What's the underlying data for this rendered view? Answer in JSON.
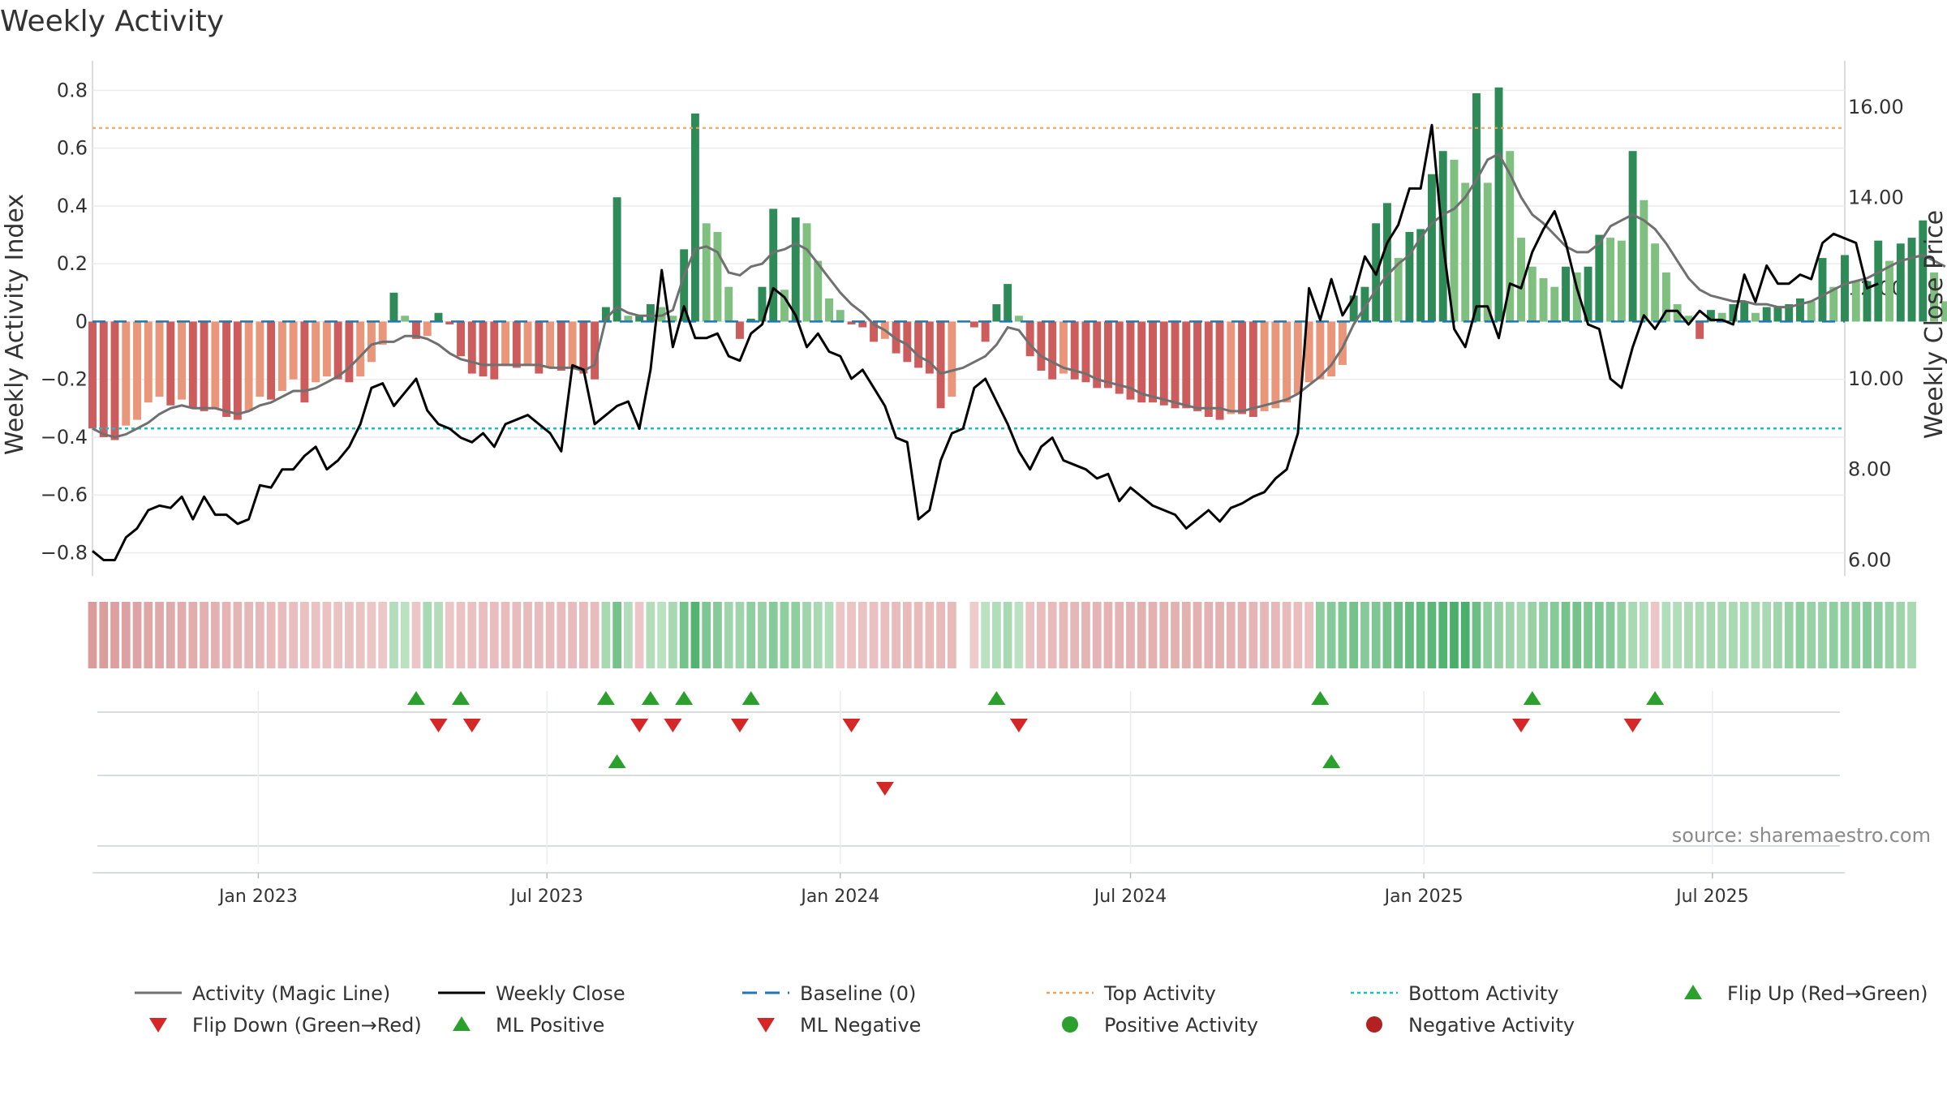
{
  "chart_data": {
    "type": "bar+line",
    "title": "Weekly Activity",
    "ylabel_left": "Weekly Activity Index",
    "ylabel_right": "Weekly Close Price",
    "source": "source: sharemaestro.com",
    "x_start": "2022-09-19",
    "x_end": "2025-09-22",
    "week_days": 7,
    "ylim_left": [
      -0.88,
      0.86
    ],
    "ylim_right": [
      5.65,
      16.75
    ],
    "left_ticks": [
      "0.8",
      "0.6",
      "0.4",
      "0.2",
      "0",
      "−0.2",
      "−0.4",
      "−0.6",
      "−0.8"
    ],
    "left_tick_values": [
      0.8,
      0.6,
      0.4,
      0.2,
      0,
      -0.2,
      -0.4,
      -0.6,
      -0.8
    ],
    "right_ticks": [
      "16.00",
      "14.00",
      "12.00",
      "10.00",
      "8.00",
      "6.00"
    ],
    "right_tick_values": [
      16,
      14,
      12,
      10,
      8,
      6
    ],
    "x_ticks": [
      {
        "label": "Jan 2023",
        "date": "2023-01-01"
      },
      {
        "label": "Jul 2023",
        "date": "2023-07-01"
      },
      {
        "label": "Jan 2024",
        "date": "2024-01-01"
      },
      {
        "label": "Jul 2024",
        "date": "2024-07-01"
      },
      {
        "label": "Jan 2025",
        "date": "2025-01-01"
      },
      {
        "label": "Jul 2025",
        "date": "2025-07-01"
      }
    ],
    "top_activity": 0.67,
    "bottom_activity": -0.37,
    "baseline": 0,
    "activity": [
      -0.37,
      -0.4,
      -0.41,
      -0.36,
      -0.34,
      -0.28,
      -0.26,
      -0.29,
      -0.27,
      -0.3,
      -0.31,
      -0.3,
      -0.33,
      -0.34,
      -0.31,
      -0.26,
      -0.27,
      -0.24,
      -0.2,
      -0.28,
      -0.21,
      -0.19,
      -0.2,
      -0.21,
      -0.19,
      -0.14,
      -0.08,
      0.1,
      0.02,
      -0.06,
      -0.05,
      0.03,
      -0.01,
      -0.12,
      -0.18,
      -0.19,
      -0.2,
      -0.15,
      -0.16,
      -0.15,
      -0.18,
      -0.16,
      -0.17,
      -0.16,
      -0.18,
      -0.2,
      0.05,
      0.43,
      0.02,
      0.02,
      0.06,
      0.05,
      0.02,
      0.25,
      0.72,
      0.34,
      0.31,
      0.12,
      -0.06,
      0.01,
      0.12,
      0.39,
      0.11,
      0.36,
      0.34,
      0.21,
      0.08,
      0.04,
      -0.01,
      -0.02,
      -0.07,
      -0.06,
      -0.11,
      -0.14,
      -0.16,
      -0.18,
      -0.3,
      -0.26,
      0.0,
      -0.02,
      -0.07,
      0.06,
      0.13,
      0.02,
      -0.12,
      -0.17,
      -0.2,
      -0.18,
      -0.2,
      -0.21,
      -0.23,
      -0.23,
      -0.25,
      -0.27,
      -0.28,
      -0.28,
      -0.29,
      -0.3,
      -0.3,
      -0.31,
      -0.33,
      -0.34,
      -0.32,
      -0.32,
      -0.33,
      -0.31,
      -0.3,
      -0.28,
      -0.25,
      -0.21,
      -0.2,
      -0.19,
      -0.15,
      0.09,
      0.12,
      0.34,
      0.41,
      0.22,
      0.31,
      0.32,
      0.51,
      0.59,
      0.56,
      0.48,
      0.79,
      0.48,
      0.81,
      0.59,
      0.29,
      0.19,
      0.15,
      0.12,
      0.19,
      0.17,
      0.19,
      0.3,
      0.29,
      0.28,
      0.59,
      0.42,
      0.27,
      0.17,
      0.06,
      0.02,
      -0.06,
      0.04,
      0.03,
      0.06,
      0.07,
      0.03,
      0.05,
      0.05,
      0.06,
      0.08,
      0.07,
      0.22,
      0.12,
      0.23,
      0.14,
      0.14,
      0.28,
      0.21,
      0.27,
      0.29,
      0.35,
      0.17,
      0.07,
      0.07
    ],
    "magic_line": [
      -0.37,
      -0.39,
      -0.4,
      -0.39,
      -0.37,
      -0.35,
      -0.32,
      -0.3,
      -0.29,
      -0.3,
      -0.3,
      -0.3,
      -0.31,
      -0.32,
      -0.31,
      -0.29,
      -0.28,
      -0.26,
      -0.24,
      -0.24,
      -0.23,
      -0.21,
      -0.19,
      -0.16,
      -0.12,
      -0.08,
      -0.07,
      -0.07,
      -0.05,
      -0.05,
      -0.06,
      -0.08,
      -0.11,
      -0.13,
      -0.14,
      -0.15,
      -0.15,
      -0.15,
      -0.15,
      -0.15,
      -0.15,
      -0.16,
      -0.16,
      -0.16,
      -0.17,
      -0.15,
      0.01,
      0.05,
      0.03,
      0.02,
      0.02,
      0.02,
      0.04,
      0.16,
      0.25,
      0.26,
      0.24,
      0.17,
      0.16,
      0.19,
      0.2,
      0.24,
      0.25,
      0.27,
      0.25,
      0.2,
      0.15,
      0.1,
      0.06,
      0.03,
      -0.01,
      -0.03,
      -0.06,
      -0.08,
      -0.12,
      -0.14,
      -0.18,
      -0.17,
      -0.16,
      -0.14,
      -0.12,
      -0.08,
      -0.02,
      -0.03,
      -0.08,
      -0.12,
      -0.14,
      -0.16,
      -0.17,
      -0.18,
      -0.2,
      -0.21,
      -0.22,
      -0.23,
      -0.25,
      -0.26,
      -0.27,
      -0.28,
      -0.29,
      -0.3,
      -0.3,
      -0.3,
      -0.31,
      -0.31,
      -0.3,
      -0.29,
      -0.28,
      -0.27,
      -0.25,
      -0.22,
      -0.19,
      -0.15,
      -0.09,
      -0.01,
      0.05,
      0.11,
      0.16,
      0.2,
      0.23,
      0.29,
      0.34,
      0.37,
      0.39,
      0.43,
      0.49,
      0.56,
      0.58,
      0.51,
      0.43,
      0.37,
      0.34,
      0.3,
      0.26,
      0.24,
      0.24,
      0.27,
      0.33,
      0.35,
      0.37,
      0.35,
      0.32,
      0.27,
      0.21,
      0.15,
      0.11,
      0.09,
      0.08,
      0.07,
      0.07,
      0.06,
      0.06,
      0.05,
      0.05,
      0.06,
      0.07,
      0.09,
      0.11,
      0.13,
      0.14,
      0.15,
      0.17,
      0.19,
      0.21,
      0.22,
      0.23,
      0.21,
      0.19
    ],
    "weekly_close": [
      6.2,
      6.0,
      6.0,
      6.5,
      6.7,
      7.1,
      7.2,
      7.15,
      7.4,
      6.9,
      7.4,
      7.0,
      7.0,
      6.8,
      6.9,
      7.65,
      7.6,
      8.0,
      8.0,
      8.3,
      8.5,
      8.0,
      8.2,
      8.5,
      9.0,
      9.8,
      9.9,
      9.4,
      9.7,
      10.0,
      9.3,
      9.0,
      8.9,
      8.7,
      8.6,
      8.8,
      8.5,
      9.0,
      9.1,
      9.2,
      9.0,
      8.8,
      8.4,
      10.3,
      10.2,
      9.0,
      9.2,
      9.4,
      9.5,
      8.9,
      10.2,
      12.4,
      10.7,
      11.6,
      10.9,
      10.9,
      11.0,
      10.5,
      10.4,
      11.0,
      11.2,
      12.0,
      11.8,
      11.4,
      10.7,
      11.0,
      10.6,
      10.5,
      10.0,
      10.2,
      9.8,
      9.4,
      8.7,
      8.6,
      6.9,
      7.1,
      8.2,
      8.8,
      8.9,
      9.8,
      10.0,
      9.5,
      9.0,
      8.4,
      8.0,
      8.5,
      8.7,
      8.2,
      8.1,
      8.0,
      7.8,
      7.9,
      7.3,
      7.6,
      7.4,
      7.2,
      7.1,
      7.0,
      6.7,
      6.9,
      7.1,
      6.85,
      7.15,
      7.25,
      7.4,
      7.5,
      7.8,
      8.0,
      8.8,
      12.0,
      11.3,
      12.2,
      11.4,
      11.8,
      12.7,
      12.3,
      13.0,
      13.4,
      14.2,
      14.2,
      15.6,
      13.0,
      11.1,
      10.7,
      11.6,
      11.6,
      10.9,
      12.1,
      12.0,
      12.8,
      13.3,
      13.7,
      13.0,
      12.0,
      11.2,
      11.1,
      10.0,
      9.8,
      10.7,
      11.4,
      11.1,
      11.5,
      11.5,
      11.2,
      11.5,
      11.3,
      11.3,
      11.2,
      12.3,
      11.7,
      12.5,
      12.1,
      12.1,
      12.3,
      12.2,
      13.0,
      13.2,
      13.1,
      13.0,
      12.0,
      12.1
    ],
    "strip_values": [
      -0.62,
      -0.6,
      -0.58,
      -0.55,
      -0.53,
      -0.5,
      -0.48,
      -0.46,
      -0.44,
      -0.42,
      -0.4,
      -0.38,
      -0.36,
      -0.34,
      -0.32,
      -0.3,
      -0.28,
      -0.26,
      -0.24,
      -0.22,
      -0.2,
      -0.2,
      -0.2,
      -0.2,
      -0.18,
      -0.16,
      -0.14,
      0.2,
      0.15,
      -0.15,
      0.25,
      0.2,
      -0.15,
      -0.2,
      -0.22,
      -0.24,
      -0.25,
      -0.26,
      -0.26,
      -0.26,
      -0.26,
      -0.26,
      -0.26,
      -0.26,
      -0.26,
      -0.26,
      0.25,
      0.55,
      0.2,
      -0.15,
      0.2,
      0.15,
      0.25,
      0.55,
      0.75,
      0.5,
      0.45,
      0.3,
      0.3,
      0.4,
      0.35,
      0.45,
      0.4,
      0.4,
      0.3,
      0.25,
      0.2,
      -0.15,
      -0.18,
      -0.2,
      -0.22,
      -0.24,
      -0.26,
      -0.28,
      -0.28,
      -0.28,
      -0.28,
      -0.28,
      null,
      -0.1,
      0.15,
      0.2,
      0.25,
      0.15,
      -0.2,
      -0.25,
      -0.28,
      -0.3,
      -0.32,
      -0.34,
      -0.34,
      -0.36,
      -0.36,
      -0.36,
      -0.38,
      -0.38,
      -0.38,
      -0.38,
      -0.38,
      -0.38,
      -0.38,
      -0.38,
      -0.36,
      -0.36,
      -0.34,
      -0.32,
      -0.3,
      -0.28,
      -0.25,
      -0.22,
      0.4,
      0.45,
      0.5,
      0.55,
      0.45,
      0.5,
      0.55,
      0.6,
      0.65,
      0.65,
      0.7,
      0.75,
      0.8,
      0.8,
      0.6,
      0.4,
      0.35,
      0.3,
      0.25,
      0.35,
      0.4,
      0.45,
      0.55,
      0.55,
      0.5,
      0.5,
      0.45,
      0.35,
      0.25,
      0.2,
      -0.15,
      0.2,
      0.2,
      0.22,
      0.24,
      0.25,
      0.25,
      0.25,
      0.25,
      0.25,
      0.25,
      0.3,
      0.35,
      0.4,
      0.35,
      0.35,
      0.4,
      0.4,
      0.4,
      0.45,
      0.4,
      0.35,
      0.3,
      0.25
    ],
    "flip_up_weeks": [
      29,
      33,
      46,
      50,
      53,
      59,
      81,
      110,
      129,
      140
    ],
    "flip_down_weeks": [
      31,
      34,
      49,
      52,
      58,
      68,
      83,
      128,
      138
    ],
    "ml_positive_weeks": [
      47,
      111
    ],
    "ml_negative_weeks": [
      71
    ],
    "legend": [
      {
        "label": "Activity (Magic Line)",
        "kind": "line",
        "color": "#707070"
      },
      {
        "label": "Weekly Close",
        "kind": "line",
        "color": "#000000"
      },
      {
        "label": "Baseline (0)",
        "kind": "dash",
        "color": "#1f77b4"
      },
      {
        "label": "Top Activity",
        "kind": "dot",
        "color": "#f0a060"
      },
      {
        "label": "Bottom Activity",
        "kind": "dot",
        "color": "#17becf"
      },
      {
        "label": "Flip Up (Red→Green)",
        "kind": "tri-up",
        "color": "#2ca02c"
      },
      {
        "label": "Flip Down (Green→Red)",
        "kind": "tri-down",
        "color": "#d62728"
      },
      {
        "label": "ML Positive",
        "kind": "tri-up",
        "color": "#2ca02c"
      },
      {
        "label": "ML Negative",
        "kind": "tri-down",
        "color": "#d62728"
      },
      {
        "label": "Positive Activity",
        "kind": "circle",
        "color": "#2ca02c"
      },
      {
        "label": "Negative Activity",
        "kind": "circle",
        "color": "#b22222"
      }
    ]
  }
}
